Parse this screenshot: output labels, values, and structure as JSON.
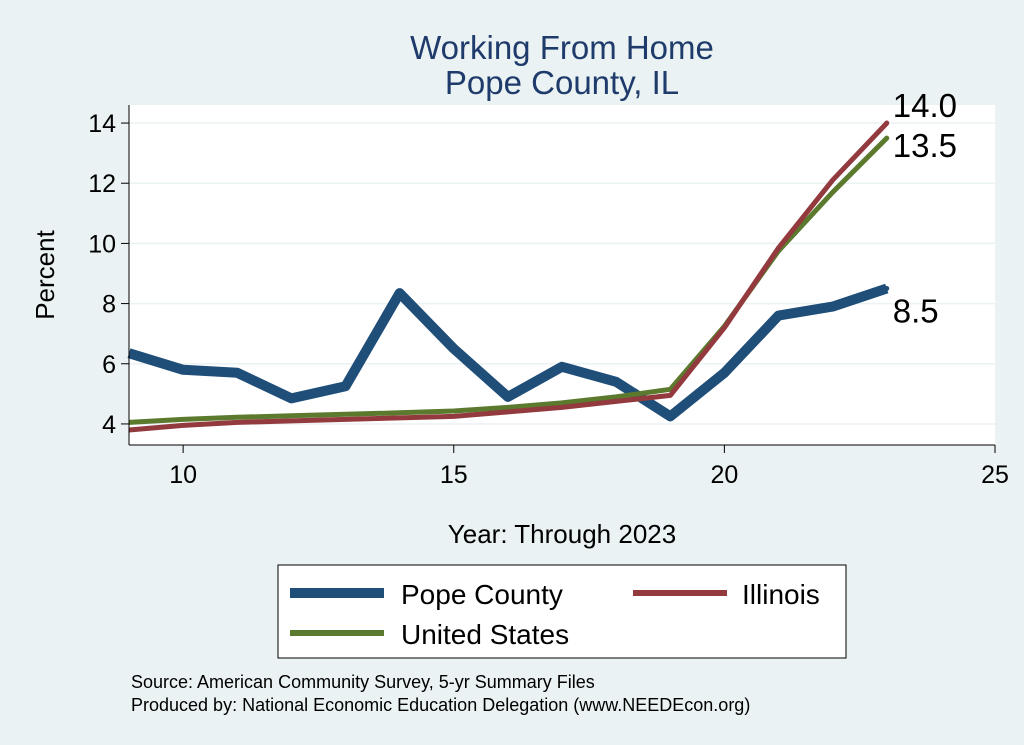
{
  "chart_data": {
    "type": "line",
    "title": "Working From Home",
    "subtitle": "Pope County, IL",
    "xlabel": "Year: Through 2023",
    "ylabel": "Percent",
    "xlim": [
      9,
      25
    ],
    "ylim": [
      3.3,
      14.6
    ],
    "xticks": [
      10,
      15,
      20,
      25
    ],
    "yticks": [
      4,
      6,
      8,
      10,
      12,
      14
    ],
    "grid": true,
    "legend_position": "bottom",
    "series": [
      {
        "name": "Pope County",
        "color": "#1f4e79",
        "x": [
          9,
          10,
          11,
          12,
          13,
          14,
          15,
          16,
          17,
          18,
          19,
          20,
          21,
          22,
          23
        ],
        "y": [
          6.35,
          5.8,
          5.7,
          4.85,
          5.25,
          8.35,
          6.5,
          4.9,
          5.9,
          5.4,
          4.25,
          5.7,
          7.6,
          7.9,
          8.5
        ],
        "end_label": "8.5"
      },
      {
        "name": "Illinois",
        "color": "#933a3e",
        "x": [
          9,
          10,
          11,
          12,
          13,
          14,
          15,
          16,
          17,
          18,
          19,
          20,
          21,
          22,
          23
        ],
        "y": [
          3.8,
          3.95,
          4.05,
          4.1,
          4.15,
          4.2,
          4.25,
          4.4,
          4.55,
          4.75,
          4.95,
          7.2,
          9.85,
          12.1,
          14.0
        ],
        "end_label": "14.0"
      },
      {
        "name": "United States",
        "color": "#5b7a2e",
        "x": [
          9,
          10,
          11,
          12,
          13,
          14,
          15,
          16,
          17,
          18,
          19,
          20,
          21,
          22,
          23
        ],
        "y": [
          4.05,
          4.15,
          4.22,
          4.27,
          4.32,
          4.37,
          4.43,
          4.55,
          4.7,
          4.9,
          5.15,
          7.25,
          9.75,
          11.7,
          13.5
        ],
        "end_label": "13.5"
      }
    ]
  },
  "source_note": "Source: American Community Survey, 5-yr Summary Files",
  "produced_note": "Produced by: National Economic Education Delegation (www.NEEDEcon.org)"
}
